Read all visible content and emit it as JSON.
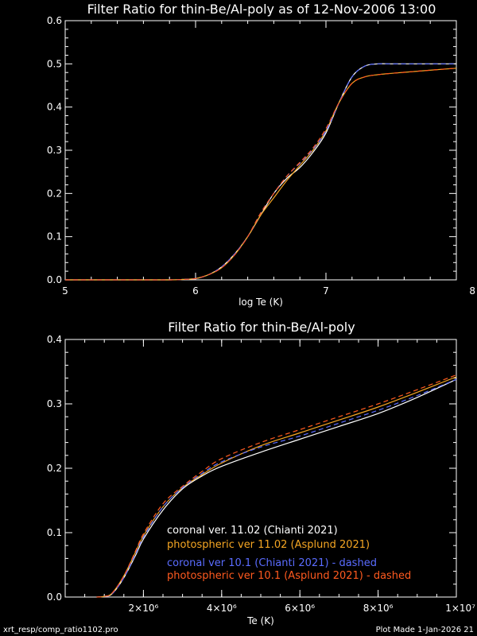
{
  "colors": {
    "background": "#000000",
    "axes": "#ffffff",
    "coronal_11": "#ffffff",
    "photospheric_11": "#f5a623",
    "coronal_10": "#5a6cff",
    "photospheric_10": "#ff5a1f"
  },
  "chart_data": [
    {
      "type": "line",
      "title": "Filter Ratio for thin-Be/Al-poly as of 12-Nov-2006 13:00",
      "xlabel": "log Te (K)",
      "ylabel": "",
      "xlim": [
        5,
        8
      ],
      "ylim": [
        0,
        0.6
      ],
      "xticks": [
        "5",
        "6",
        "7",
        "8"
      ],
      "yticks": [
        "0.0",
        "0.1",
        "0.2",
        "0.3",
        "0.4",
        "0.5",
        "0.6"
      ],
      "x": [
        5.0,
        5.5,
        5.8,
        5.9,
        6.0,
        6.1,
        6.2,
        6.3,
        6.4,
        6.5,
        6.6,
        6.7,
        6.8,
        6.9,
        7.0,
        7.1,
        7.2,
        7.3,
        7.4,
        7.5,
        7.7,
        8.0
      ],
      "series": [
        {
          "name": "coronal ver. 11.02 (Chianti 2021)",
          "color": "#ffffff",
          "dash": false,
          "values": [
            0.0,
            0.0,
            0.0,
            0.001,
            0.003,
            0.012,
            0.03,
            0.06,
            0.1,
            0.15,
            0.2,
            0.235,
            0.26,
            0.295,
            0.34,
            0.41,
            0.47,
            0.495,
            0.5,
            0.5,
            0.5,
            0.5
          ]
        },
        {
          "name": "photospheric ver 11.02 (Asplund 2021)",
          "color": "#f5a623",
          "dash": false,
          "values": [
            0.0,
            0.0,
            0.0,
            0.001,
            0.003,
            0.012,
            0.028,
            0.058,
            0.1,
            0.15,
            0.19,
            0.23,
            0.265,
            0.3,
            0.345,
            0.41,
            0.455,
            0.47,
            0.475,
            0.478,
            0.483,
            0.49
          ]
        },
        {
          "name": "coronal ver 10.1 (Chianti 2021) - dashed",
          "color": "#5a6cff",
          "dash": true,
          "values": [
            0.0,
            0.0,
            0.0,
            0.001,
            0.003,
            0.012,
            0.03,
            0.06,
            0.1,
            0.155,
            0.2,
            0.24,
            0.27,
            0.302,
            0.345,
            0.41,
            0.47,
            0.495,
            0.5,
            0.5,
            0.5,
            0.5
          ]
        },
        {
          "name": "photospheric ver 10.1 (Asplund 2021) - dashed",
          "color": "#ff5a1f",
          "dash": true,
          "values": [
            0.0,
            0.0,
            0.0,
            0.001,
            0.003,
            0.012,
            0.028,
            0.058,
            0.1,
            0.155,
            0.2,
            0.24,
            0.272,
            0.305,
            0.35,
            0.41,
            0.455,
            0.47,
            0.475,
            0.478,
            0.483,
            0.49
          ]
        }
      ]
    },
    {
      "type": "line",
      "title": "Filter Ratio for thin-Be/Al-poly",
      "xlabel": "Te (K)",
      "ylabel": "",
      "xlim": [
        0,
        10000000
      ],
      "ylim": [
        0,
        0.4
      ],
      "xticks": [
        {
          "value": 2000000,
          "label": "2×10⁶"
        },
        {
          "value": 4000000,
          "label": "4×10⁶"
        },
        {
          "value": 6000000,
          "label": "6×10⁶"
        },
        {
          "value": 8000000,
          "label": "8×10⁶"
        },
        {
          "value": 10000000,
          "label": "1×10⁷"
        }
      ],
      "yticks": [
        "0.0",
        "0.1",
        "0.2",
        "0.3",
        "0.4"
      ],
      "x": [
        800000,
        1000000,
        1200000,
        1500000,
        1800000,
        2000000,
        2500000,
        3000000,
        3500000,
        4000000,
        5000000,
        6000000,
        7000000,
        8000000,
        9000000,
        10000000
      ],
      "series": [
        {
          "name": "coronal ver. 11.02 (Chianti 2021)",
          "color": "#ffffff",
          "dash": false,
          "values": [
            0.0,
            0.001,
            0.005,
            0.03,
            0.065,
            0.09,
            0.135,
            0.168,
            0.188,
            0.203,
            0.225,
            0.245,
            0.265,
            0.285,
            0.31,
            0.338
          ]
        },
        {
          "name": "photospheric ver 11.02 (Asplund 2021)",
          "color": "#f5a623",
          "dash": false,
          "values": [
            0.0,
            0.001,
            0.006,
            0.033,
            0.07,
            0.095,
            0.14,
            0.17,
            0.19,
            0.208,
            0.235,
            0.255,
            0.275,
            0.295,
            0.318,
            0.342
          ]
        },
        {
          "name": "coronal ver 10.1 (Chianti 2021) - dashed",
          "color": "#5a6cff",
          "dash": true,
          "values": [
            0.0,
            0.001,
            0.005,
            0.03,
            0.067,
            0.093,
            0.14,
            0.17,
            0.192,
            0.21,
            0.233,
            0.25,
            0.27,
            0.29,
            0.313,
            0.338
          ]
        },
        {
          "name": "photospheric ver 10.1 (Asplund 2021) - dashed",
          "color": "#ff5a1f",
          "dash": true,
          "values": [
            0.0,
            0.001,
            0.006,
            0.033,
            0.072,
            0.098,
            0.145,
            0.172,
            0.195,
            0.215,
            0.24,
            0.26,
            0.28,
            0.3,
            0.322,
            0.345
          ]
        }
      ]
    }
  ],
  "footer": {
    "left": "xrt_resp/comp_ratio1102.pro",
    "right": "Plot Made  1-Jan-2026 21"
  }
}
